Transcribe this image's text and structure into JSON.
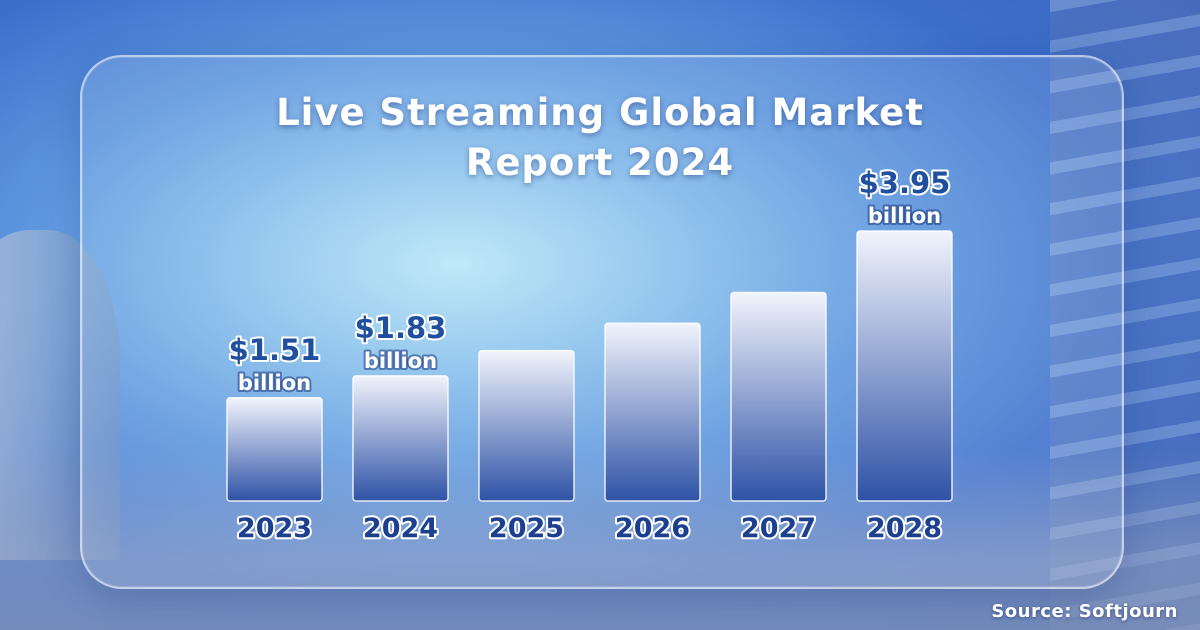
{
  "title": {
    "line1": "Live Streaming Global Market",
    "line2": "Report 2024"
  },
  "source": "Source: Softjourn",
  "colors": {
    "bar_top": "#f2f4fc",
    "bar_bottom": "#2e52a6",
    "label_value": "#1f4f9e",
    "label_unit": "#ffffff",
    "year_fill": "#1d3f8f",
    "year_stroke": "#ffffff"
  },
  "chart_data": {
    "type": "bar",
    "title": "Live Streaming Global Market Report 2024",
    "categories": [
      "2023",
      "2024",
      "2025",
      "2026",
      "2027",
      "2028"
    ],
    "values": [
      1.51,
      1.83,
      2.2,
      2.6,
      3.05,
      3.95
    ],
    "data_labels": [
      {
        "value": "$1.51",
        "unit": "billion"
      },
      {
        "value": "$1.83",
        "unit": "billion"
      },
      null,
      null,
      null,
      {
        "value": "$3.95",
        "unit": "billion"
      }
    ],
    "xlabel": "",
    "ylabel": "",
    "ylim": [
      0,
      3.95
    ],
    "grid": false,
    "legend": "none"
  }
}
